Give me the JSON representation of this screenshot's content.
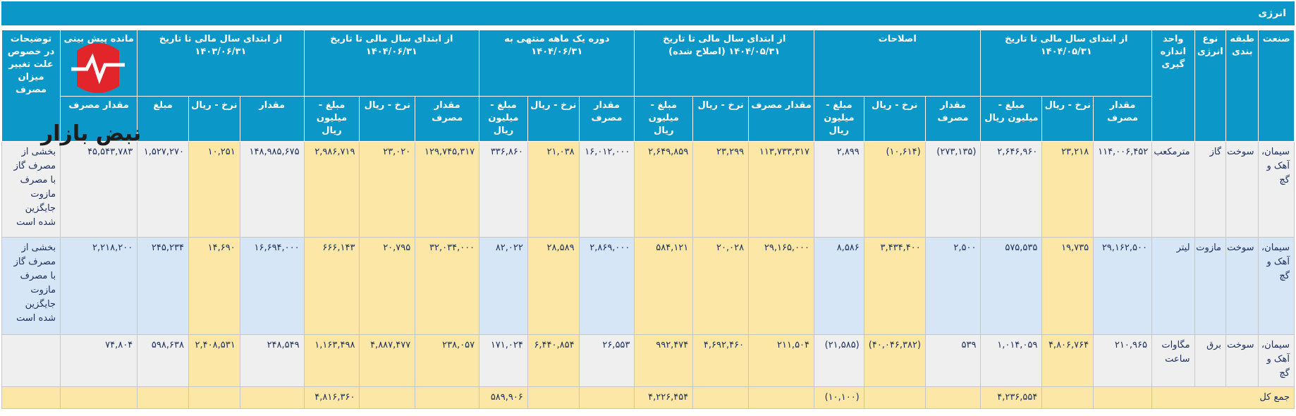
{
  "title": "انرژی",
  "headers": {
    "industry": "صنعت",
    "category": "طبقه بندی",
    "energy_type": "نوع انرژی",
    "unit": "واحد اندازه گیری",
    "groups": [
      "از ابتدای سال مالی تا تاریخ ۱۴۰۴/۰۵/۳۱",
      "اصلاحات",
      "از ابتدای سال مالی تا تاریخ ۱۴۰۴/۰۵/۳۱ (اصلاح شده)",
      "دوره یک ماهه منتهی به ۱۴۰۴/۰۶/۳۱",
      "از ابتدای سال مالی تا تاریخ ۱۴۰۴/۰۶/۳۱",
      "از ابتدای سال مالی تا تاریخ ۱۴۰۳/۰۶/۳۱"
    ],
    "remaining_group": "مانده پیش بینی تا ...",
    "notes": "توضیحات در خصوص علت تغییر میزان مصرف",
    "sub": {
      "g1": [
        "مقدار مصرف",
        "نرخ - ریال",
        "مبلغ - میلیون ریال"
      ],
      "g2": [
        "مقدار مصرف",
        "نرخ - ریال",
        "مبلغ - میلیون ریال"
      ],
      "g3": [
        "مقدار مصرف",
        "نرخ - ریال",
        "مبلغ - میلیون ریال"
      ],
      "g4": [
        "مقدار مصرف",
        "نرخ - ریال",
        "مبلغ - میلیون ریال"
      ],
      "g5": [
        "مقدار مصرف",
        "نرخ - ریال",
        "مبلغ - میلیون ریال"
      ],
      "g6": [
        "مقدار",
        "نرخ - ریال",
        "مبلغ"
      ],
      "g7": [
        "مقدار مصرف"
      ]
    }
  },
  "rows": [
    {
      "industry": "سیمان، آهک و گچ",
      "category": "سوخت",
      "energy_type": "گاز",
      "unit": "مترمکعب",
      "v": [
        "۱۱۴,۰۰۶,۴۵۲",
        "۲۳,۲۱۸",
        "۲,۶۴۶,۹۶۰",
        "(۲۷۳,۱۳۵)",
        "(۱۰,۶۱۴)",
        "۲,۸۹۹",
        "۱۱۳,۷۳۳,۳۱۷",
        "۲۳,۲۹۹",
        "۲,۶۴۹,۸۵۹",
        "۱۶,۰۱۲,۰۰۰",
        "۲۱,۰۳۸",
        "۳۳۶,۸۶۰",
        "۱۲۹,۷۴۵,۳۱۷",
        "۲۳,۰۲۰",
        "۲,۹۸۶,۷۱۹",
        "۱۴۸,۹۸۵,۶۷۵",
        "۱۰,۲۵۱",
        "۱,۵۲۷,۲۷۰",
        "۴۵,۵۴۳,۷۸۳"
      ],
      "note": "بخشی از مصرف گاز با مصرف مازوت جایگزین شده است"
    },
    {
      "industry": "سیمان، آهک و گچ",
      "category": "سوخت",
      "energy_type": "مازوت",
      "unit": "لیتر",
      "v": [
        "۲۹,۱۶۲,۵۰۰",
        "۱۹,۷۳۵",
        "۵۷۵,۵۳۵",
        "۲,۵۰۰",
        "۳,۴۳۴,۴۰۰",
        "۸,۵۸۶",
        "۲۹,۱۶۵,۰۰۰",
        "۲۰,۰۲۸",
        "۵۸۴,۱۲۱",
        "۲,۸۶۹,۰۰۰",
        "۲۸,۵۸۹",
        "۸۲,۰۲۲",
        "۳۲,۰۳۴,۰۰۰",
        "۲۰,۷۹۵",
        "۶۶۶,۱۴۳",
        "۱۶,۶۹۴,۰۰۰",
        "۱۴,۶۹۰",
        "۲۴۵,۲۳۴",
        "۲,۲۱۸,۲۰۰"
      ],
      "note": "بخشی از مصرف گاز با مصرف مازوت جایگزین شده است"
    },
    {
      "industry": "سیمان، آهک و گچ",
      "category": "سوخت",
      "energy_type": "برق",
      "unit": "مگاوات ساعت",
      "v": [
        "۲۱۰,۹۶۵",
        "۴,۸۰۶,۷۶۴",
        "۱,۰۱۴,۰۵۹",
        "۵۳۹",
        "(۴۰,۰۴۶,۳۸۲)",
        "(۲۱,۵۸۵)",
        "۲۱۱,۵۰۴",
        "۴,۶۹۲,۴۶۰",
        "۹۹۲,۴۷۴",
        "۲۶,۵۵۳",
        "۶,۴۴۰,۸۵۴",
        "۱۷۱,۰۲۴",
        "۲۳۸,۰۵۷",
        "۴,۸۸۷,۴۷۷",
        "۱,۱۶۳,۴۹۸",
        "۲۴۸,۵۴۹",
        "۲,۴۰۸,۵۳۱",
        "۵۹۸,۶۳۸",
        "۷۴,۸۰۴"
      ],
      "note": ""
    }
  ],
  "total": {
    "label": "جمع کل",
    "g1": "۴,۲۳۶,۵۵۴",
    "g2": "(۱۰,۱۰۰)",
    "g3": "۴,۲۲۶,۴۵۴",
    "g4": "۵۸۹,۹۰۶",
    "g5": "۴,۸۱۶,۳۶۰"
  },
  "watermark": {
    "text": "نبض بازار",
    "colors": {
      "red": "#e2252b",
      "dark": "#1d1d1d"
    }
  }
}
